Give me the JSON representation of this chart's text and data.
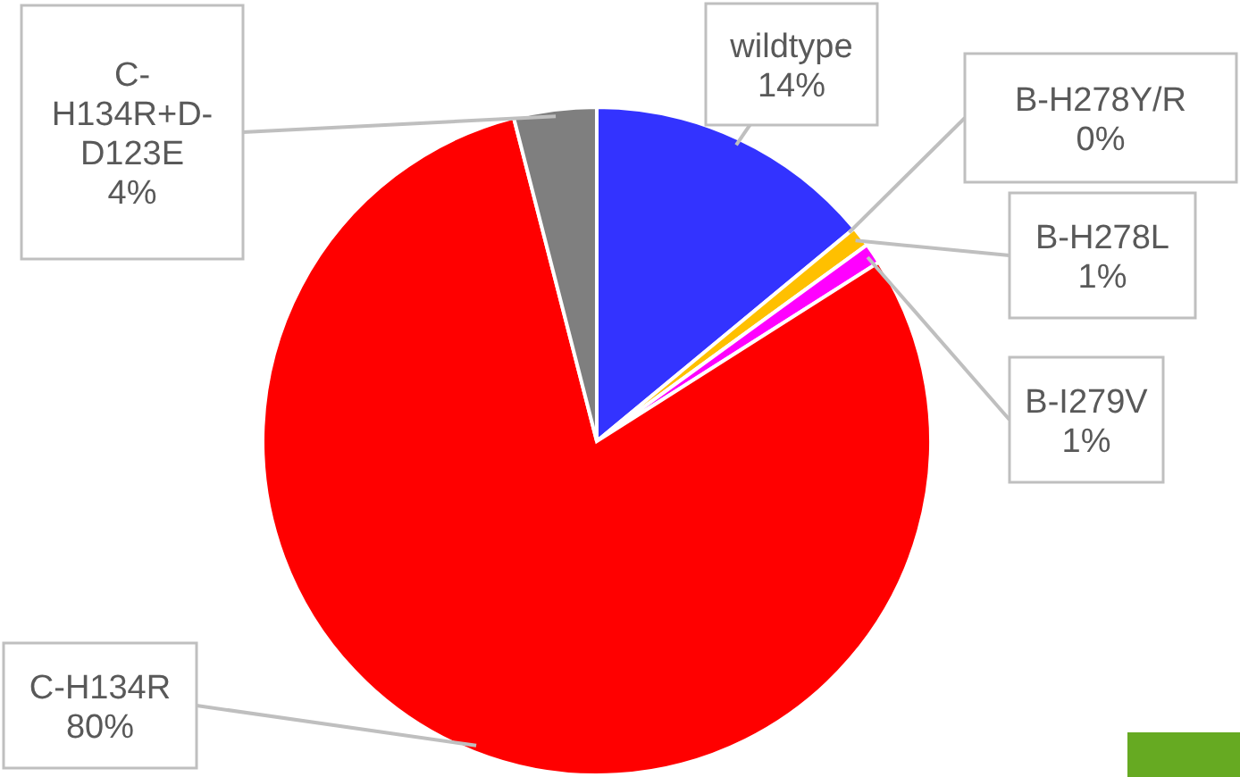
{
  "chart_data": {
    "type": "pie",
    "categories": [
      "wildtype",
      "B-H278Y/R",
      "B-H278L",
      "B-I279V",
      "C-H134R",
      "C-H134R+D-D123E"
    ],
    "values": [
      14,
      0,
      1,
      1,
      80,
      4
    ],
    "value_labels": [
      "14%",
      "0%",
      "1%",
      "1%",
      "80%",
      "4%"
    ],
    "colors": [
      "#3333ff",
      null,
      "#ffc000",
      "#ff00ff",
      "#ff0000",
      "#7f7f7f"
    ]
  }
}
